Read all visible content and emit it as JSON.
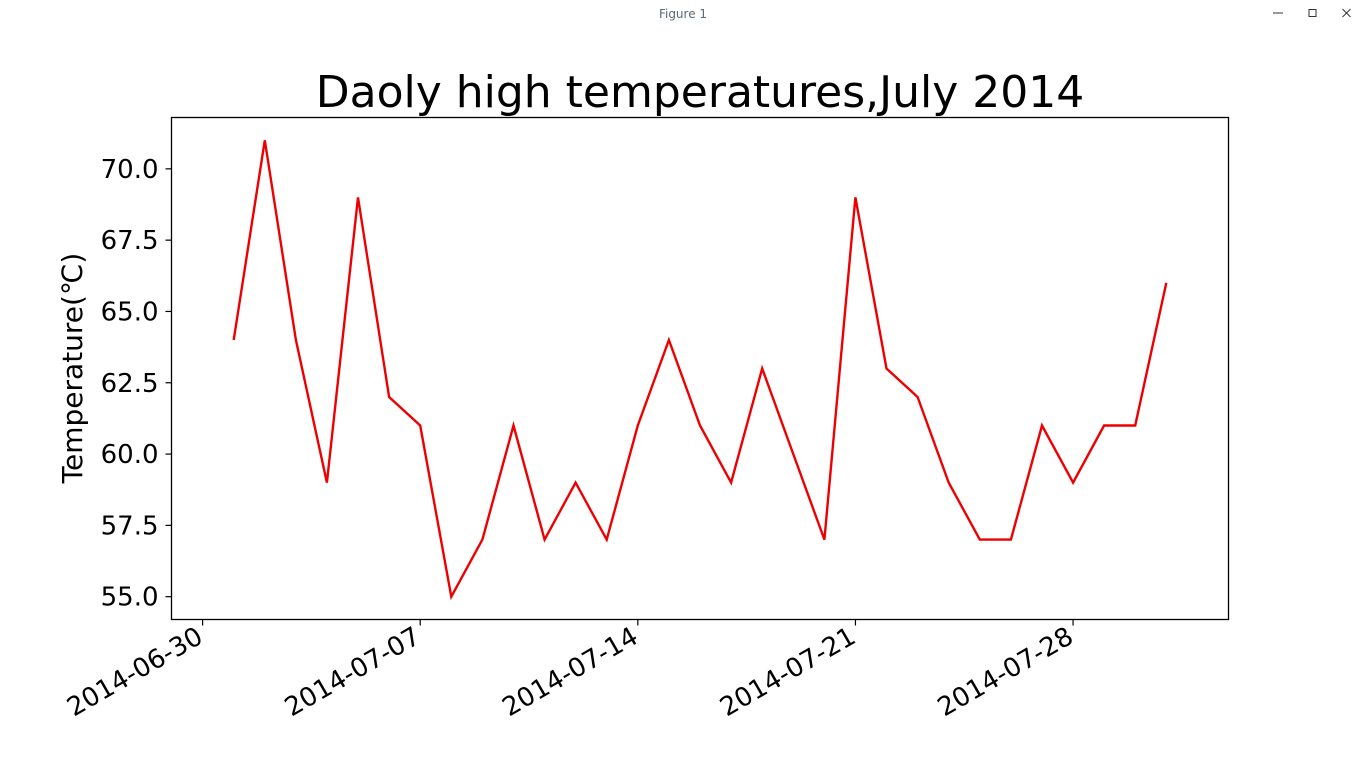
{
  "window": {
    "title": "Figure 1",
    "controls": {
      "minimize_icon": "minimize-icon",
      "maximize_icon": "maximize-icon",
      "close_icon": "close-icon"
    }
  },
  "chart_data": {
    "type": "line",
    "title": "Daoly high temperatures,July 2014",
    "xlabel": "",
    "ylabel": "Temperature(℃)",
    "line_color": "#ee0000",
    "grid": false,
    "x_tick_labels": [
      "2014-06-30",
      "2014-07-07",
      "2014-07-14",
      "2014-07-21",
      "2014-07-28"
    ],
    "y_tick_labels": [
      "55.0",
      "57.5",
      "60.0",
      "62.5",
      "65.0",
      "67.5",
      "70.0"
    ],
    "xlim": [
      "2014-06-29",
      "2014-08-02"
    ],
    "ylim": [
      54.2,
      71.8
    ],
    "series": [
      {
        "x": [
          "2014-07-01",
          "2014-07-02",
          "2014-07-03",
          "2014-07-04",
          "2014-07-05",
          "2014-07-06",
          "2014-07-07",
          "2014-07-08",
          "2014-07-09",
          "2014-07-10",
          "2014-07-11",
          "2014-07-12",
          "2014-07-13",
          "2014-07-14",
          "2014-07-15",
          "2014-07-16",
          "2014-07-17",
          "2014-07-18",
          "2014-07-19",
          "2014-07-20",
          "2014-07-21",
          "2014-07-22",
          "2014-07-23",
          "2014-07-24",
          "2014-07-25",
          "2014-07-26",
          "2014-07-27",
          "2014-07-28",
          "2014-07-29",
          "2014-07-30",
          "2014-07-31"
        ],
        "values": [
          64,
          71,
          64,
          59,
          69,
          62,
          61,
          55,
          57,
          61,
          57,
          59,
          57,
          61,
          64,
          61,
          59,
          63,
          60,
          57,
          69,
          63,
          62,
          59,
          57,
          57,
          61,
          59,
          61,
          61,
          66
        ]
      }
    ]
  }
}
